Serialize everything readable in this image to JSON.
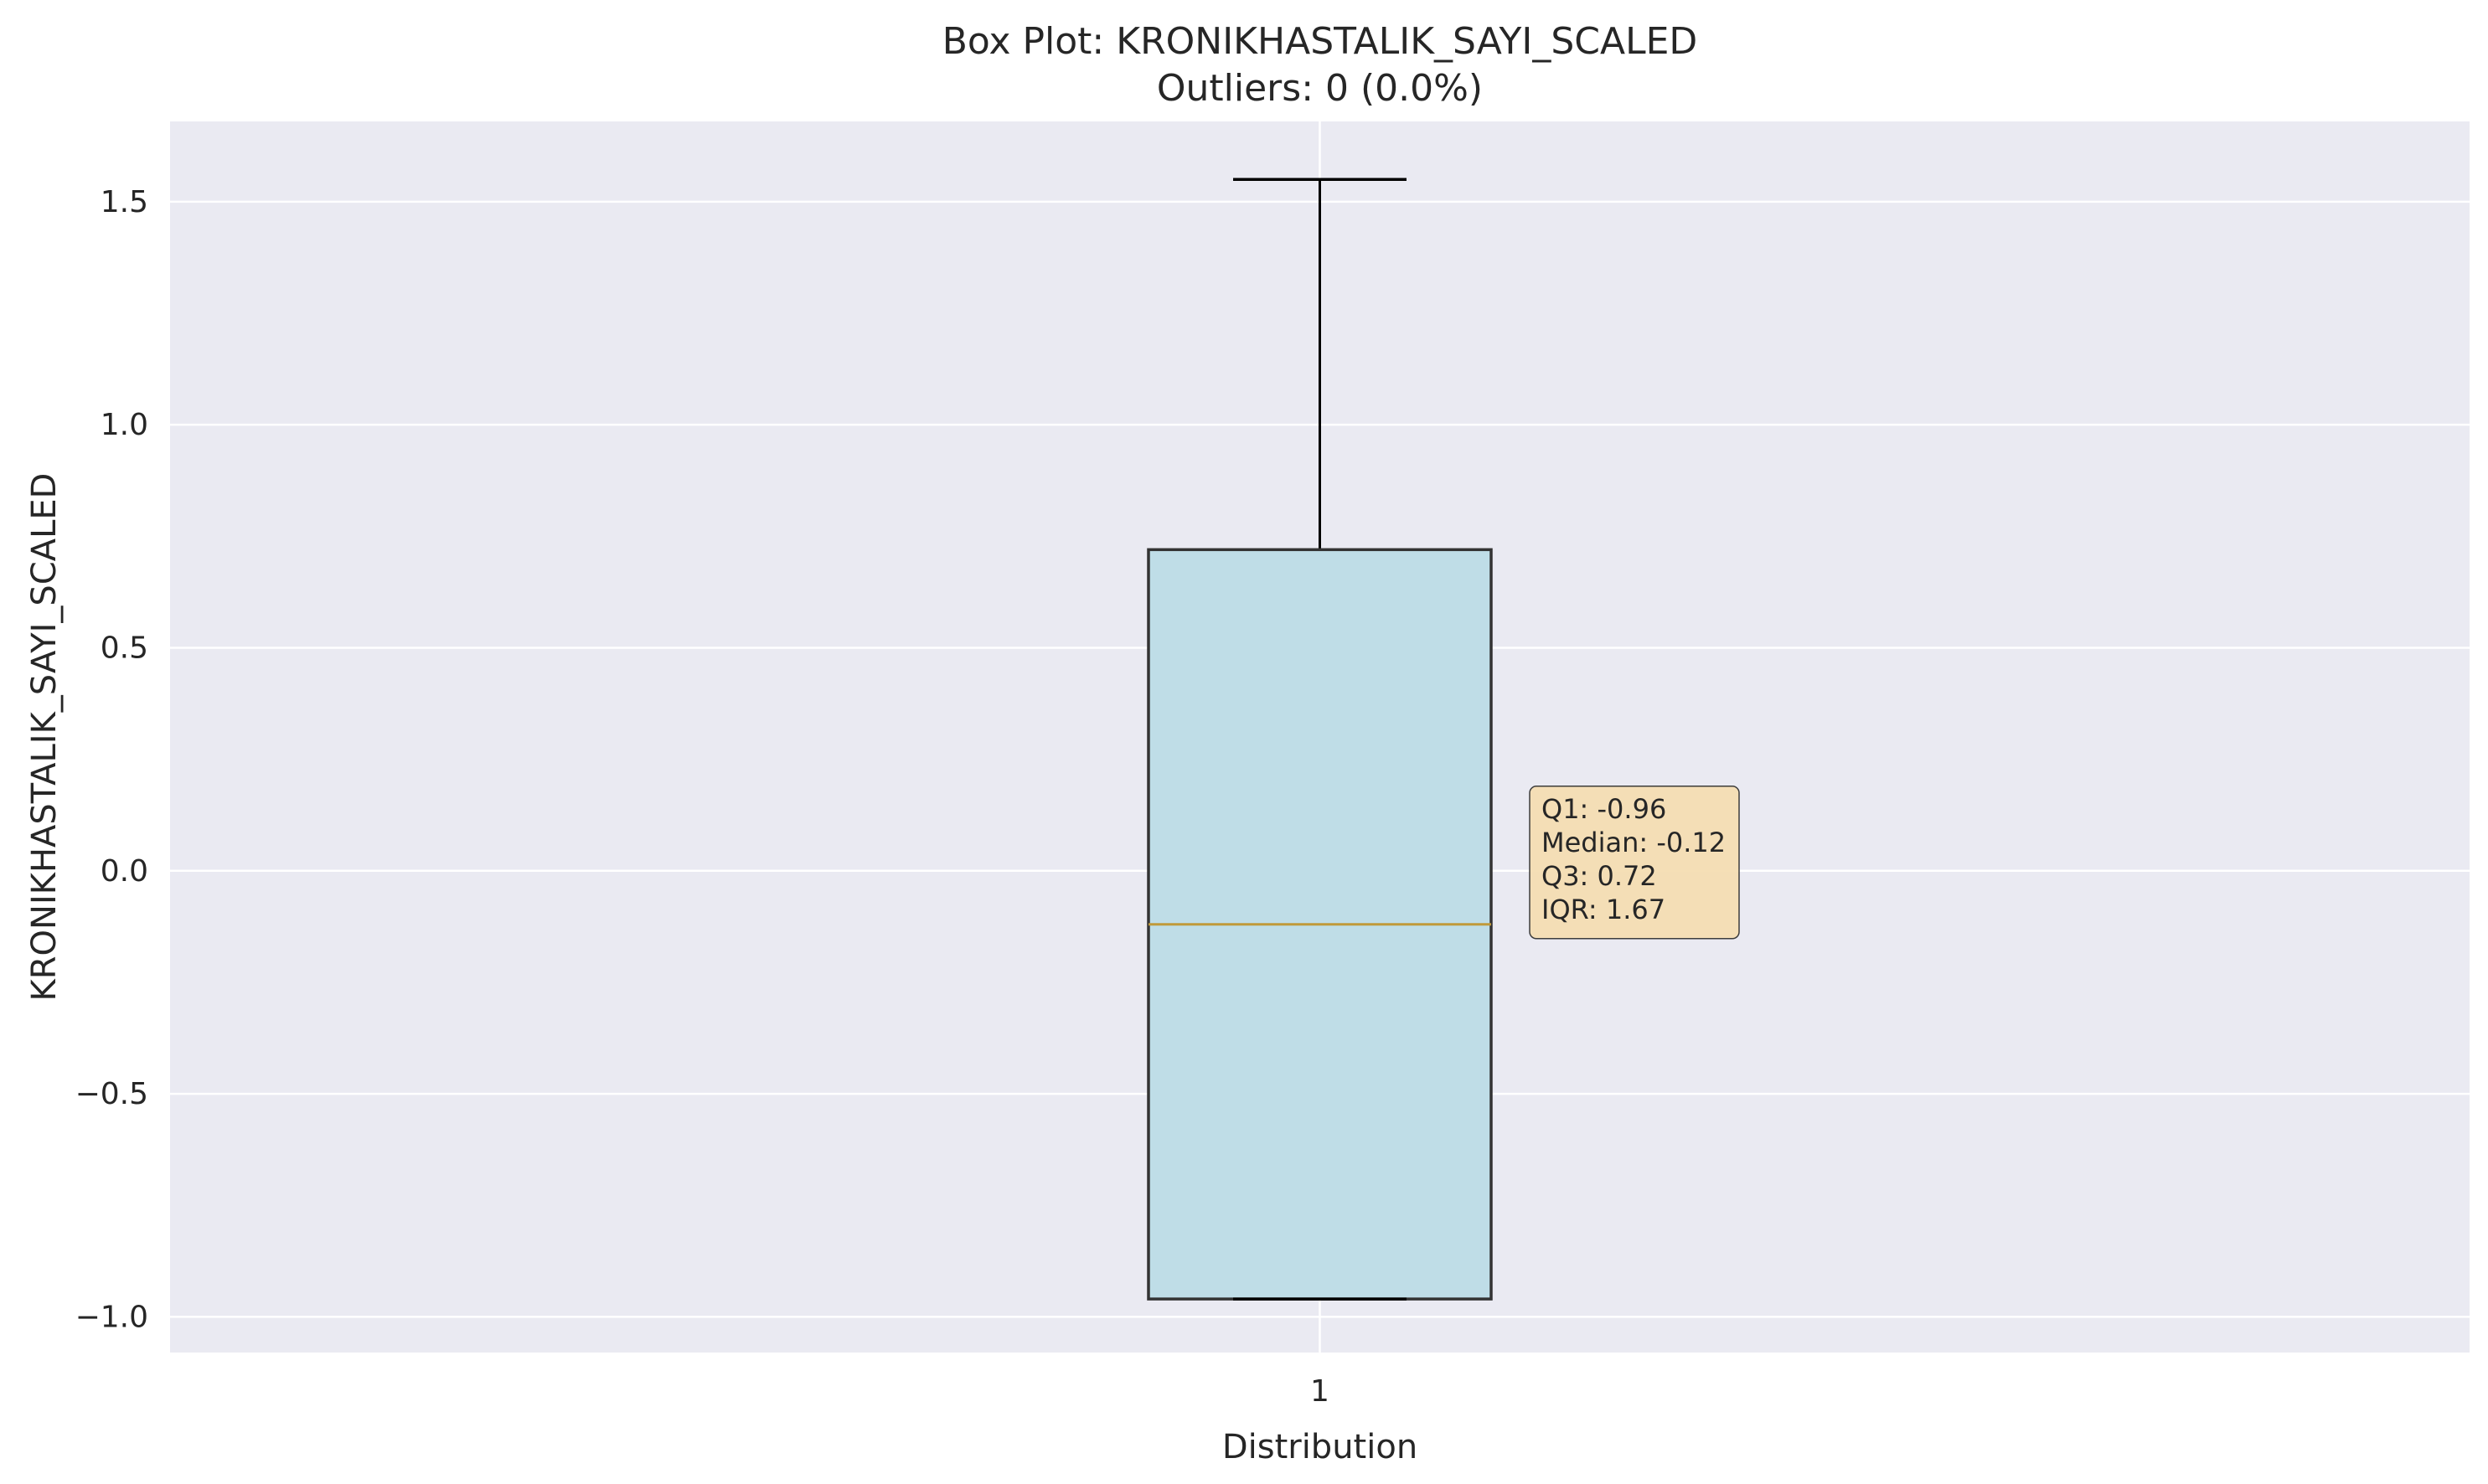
{
  "chart_data": {
    "type": "box",
    "title": "Box Plot: KRONIKHASTALIK_SAYI_SCALED",
    "subtitle": "Outliers: 0 (0.0%)",
    "xlabel": "Distribution",
    "ylabel": "KRONIKHASTALIK_SAYI_SCALED",
    "categories": [
      "1"
    ],
    "ylim": [
      -1.08,
      1.68
    ],
    "yticks": [
      -1.0,
      -0.5,
      0.0,
      0.5,
      1.0,
      1.5
    ],
    "ytick_labels": [
      "−1.0",
      "−0.5",
      "0.0",
      "0.5",
      "1.0",
      "1.5"
    ],
    "grid": true,
    "boxes": [
      {
        "category": "1",
        "whisker_low": -0.96,
        "q1": -0.96,
        "median": -0.12,
        "q3": 0.72,
        "whisker_high": 1.55,
        "outliers": []
      }
    ],
    "annotation_lines": [
      "Q1: -0.96",
      "Median: -0.12",
      "Q3: 0.72",
      "IQR: 1.67"
    ],
    "colors": {
      "plot_background": "#EAEAF2",
      "grid": "#FFFFFF",
      "box_fill": "#BFDDE7",
      "box_edge": "#333333",
      "median": "#C09A3A",
      "whisker": "#000000",
      "annotation_fill": "#F5DEB3"
    }
  }
}
